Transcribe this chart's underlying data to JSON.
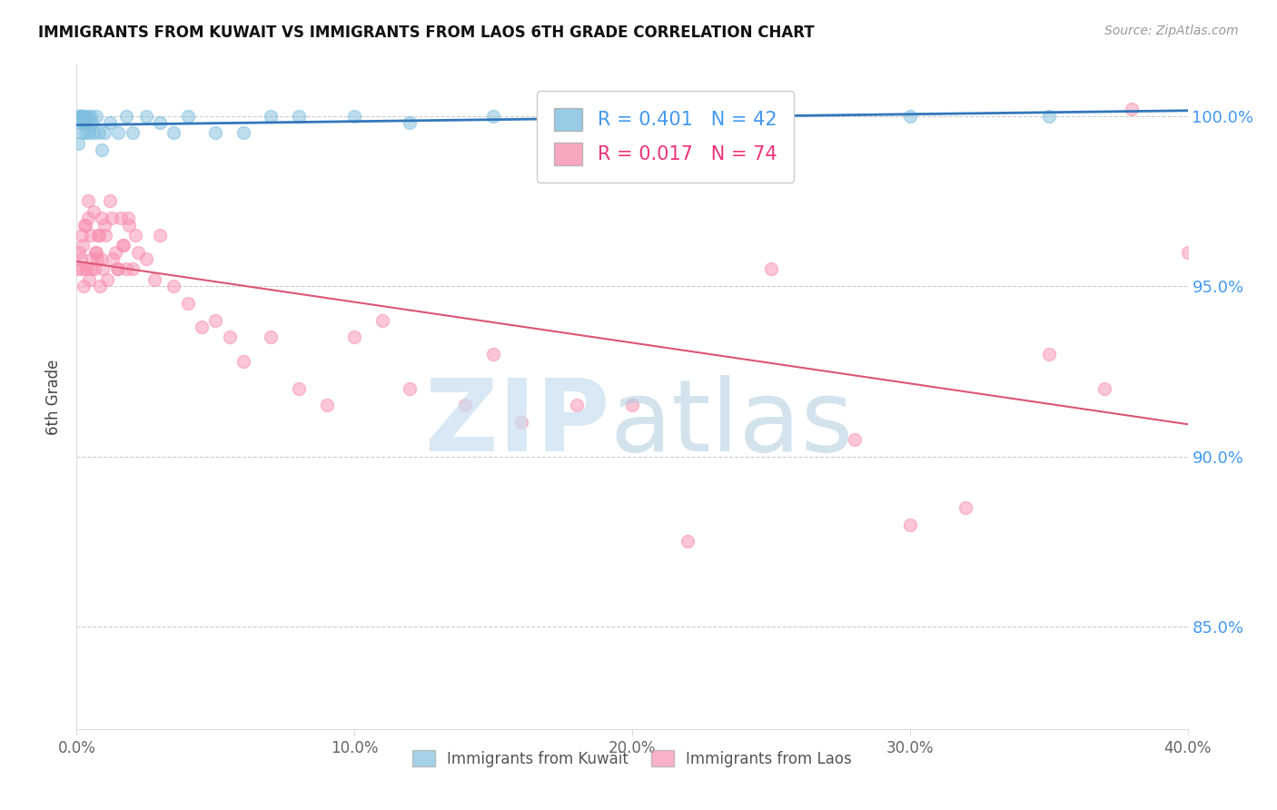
{
  "title": "IMMIGRANTS FROM KUWAIT VS IMMIGRANTS FROM LAOS 6TH GRADE CORRELATION CHART",
  "source": "Source: ZipAtlas.com",
  "ylabel": "6th Grade",
  "xlim": [
    0.0,
    40.0
  ],
  "ylim": [
    82.0,
    101.5
  ],
  "ytick_positions": [
    85,
    90,
    95,
    100
  ],
  "ytick_labels": [
    "85.0%",
    "90.0%",
    "95.0%",
    "100.0%"
  ],
  "xtick_positions": [
    0,
    10,
    20,
    30,
    40
  ],
  "xtick_labels": [
    "0.0%",
    "10.0%",
    "20.0%",
    "30.0%",
    "40.0%"
  ],
  "kuwait_R": 0.401,
  "kuwait_N": 42,
  "laos_R": 0.017,
  "laos_N": 74,
  "kuwait_color": "#7fbfdf",
  "laos_color": "#f890b0",
  "kuwait_line_color": "#3377bb",
  "laos_line_color": "#dd5577",
  "kuwait_x": [
    0.05,
    0.08,
    0.1,
    0.12,
    0.15,
    0.18,
    0.2,
    0.22,
    0.25,
    0.28,
    0.3,
    0.35,
    0.4,
    0.45,
    0.5,
    0.55,
    0.6,
    0.7,
    0.8,
    0.9,
    1.0,
    1.2,
    1.5,
    1.8,
    2.0,
    2.5,
    3.0,
    3.5,
    4.0,
    5.0,
    6.0,
    7.0,
    8.0,
    10.0,
    12.0,
    15.0,
    18.0,
    20.0,
    22.0,
    25.0,
    30.0,
    35.0
  ],
  "kuwait_y": [
    99.2,
    100.0,
    100.0,
    99.8,
    100.0,
    99.5,
    100.0,
    99.8,
    100.0,
    100.0,
    99.5,
    99.8,
    100.0,
    99.5,
    100.0,
    99.8,
    99.5,
    100.0,
    99.5,
    99.0,
    99.5,
    99.8,
    99.5,
    100.0,
    99.5,
    100.0,
    99.8,
    99.5,
    100.0,
    99.5,
    99.5,
    100.0,
    100.0,
    100.0,
    99.8,
    100.0,
    100.0,
    100.0,
    100.0,
    100.0,
    100.0,
    100.0
  ],
  "laos_x": [
    0.05,
    0.1,
    0.15,
    0.2,
    0.25,
    0.3,
    0.35,
    0.4,
    0.45,
    0.5,
    0.55,
    0.6,
    0.65,
    0.7,
    0.75,
    0.8,
    0.85,
    0.9,
    0.95,
    1.0,
    1.1,
    1.2,
    1.3,
    1.4,
    1.5,
    1.6,
    1.7,
    1.8,
    1.9,
    2.0,
    2.2,
    2.5,
    2.8,
    3.0,
    3.5,
    4.0,
    4.5,
    5.0,
    5.5,
    6.0,
    7.0,
    8.0,
    9.0,
    10.0,
    11.0,
    12.0,
    14.0,
    15.0,
    16.0,
    18.0,
    20.0,
    22.0,
    25.0,
    28.0,
    30.0,
    32.0,
    35.0,
    37.0,
    38.0,
    40.0,
    0.18,
    0.22,
    0.28,
    0.42,
    0.52,
    0.68,
    0.78,
    0.88,
    1.05,
    1.25,
    1.45,
    1.65,
    1.85,
    2.1
  ],
  "laos_y": [
    95.5,
    96.0,
    95.8,
    96.5,
    95.0,
    96.8,
    95.5,
    97.0,
    95.2,
    96.5,
    95.8,
    97.2,
    95.5,
    96.0,
    95.8,
    96.5,
    95.0,
    97.0,
    95.5,
    96.8,
    95.2,
    97.5,
    95.8,
    96.0,
    95.5,
    97.0,
    96.2,
    95.5,
    96.8,
    95.5,
    96.0,
    95.8,
    95.2,
    96.5,
    95.0,
    94.5,
    93.8,
    94.0,
    93.5,
    92.8,
    93.5,
    92.0,
    91.5,
    93.5,
    94.0,
    92.0,
    91.5,
    93.0,
    91.0,
    91.5,
    91.5,
    87.5,
    95.5,
    90.5,
    88.0,
    88.5,
    93.0,
    92.0,
    100.2,
    96.0,
    95.5,
    96.2,
    96.8,
    97.5,
    95.5,
    96.0,
    96.5,
    95.8,
    96.5,
    97.0,
    95.5,
    96.2,
    97.0,
    96.5
  ],
  "watermark_zip_color": "#c8dff0",
  "watermark_atlas_color": "#b0cce0",
  "grid_color": "#cccccc",
  "spine_color": "#dddddd"
}
